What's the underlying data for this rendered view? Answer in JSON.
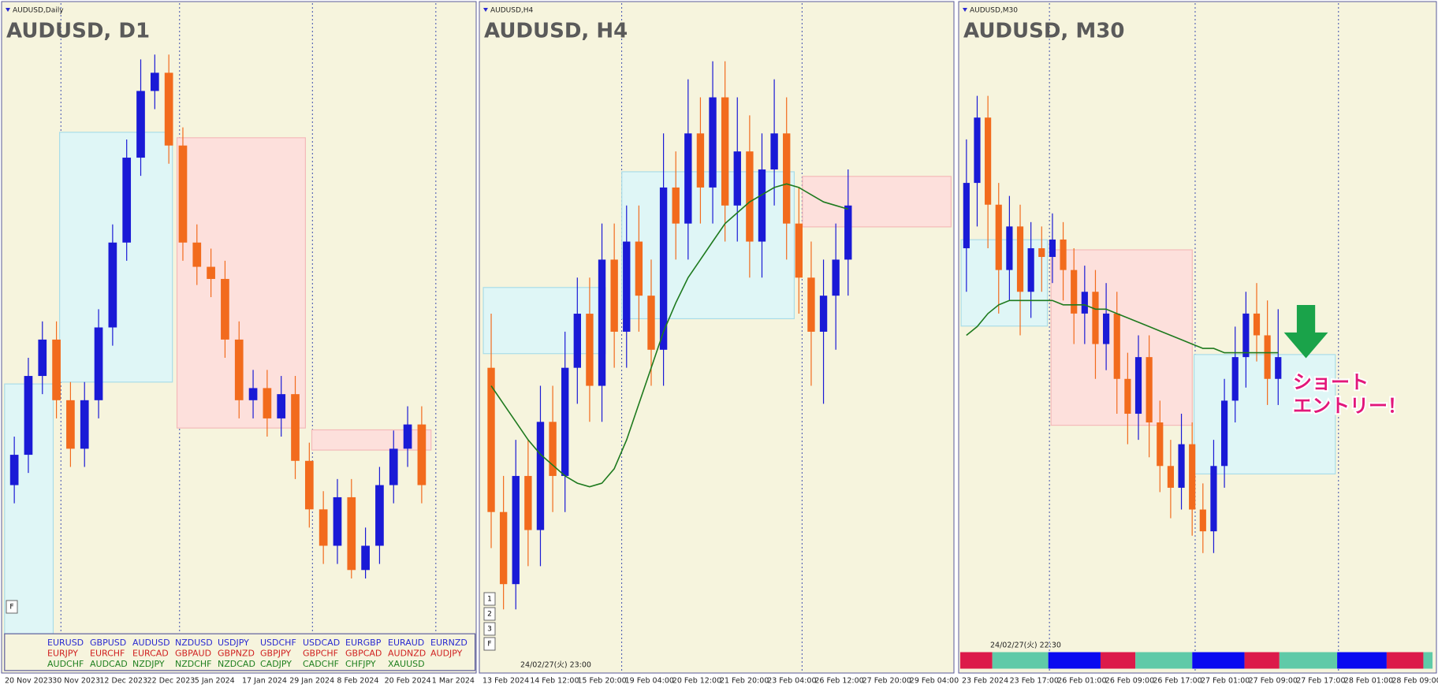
{
  "chart_data": [
    {
      "type": "candlestick",
      "symbol": "AUDUSD,Daily",
      "title": "AUDUSD, D1",
      "up_color": "#1a1ad6",
      "down_color": "#f26b1d",
      "ylim": [
        0.6367,
        0.692
      ],
      "open": [
        0.652,
        0.6545,
        0.661,
        0.664,
        0.659,
        0.655,
        0.659,
        0.665,
        0.672,
        0.679,
        0.6845,
        0.686,
        0.68,
        0.672,
        0.67,
        0.669,
        0.664,
        0.659,
        0.66,
        0.6575,
        0.6595,
        0.654,
        0.65,
        0.647,
        0.651,
        0.645,
        0.647,
        0.652,
        0.655,
        0.657
      ],
      "high": [
        0.656,
        0.6625,
        0.6655,
        0.6655,
        0.6605,
        0.6605,
        0.6665,
        0.6735,
        0.6805,
        0.6871,
        0.6875,
        0.6875,
        0.6815,
        0.6735,
        0.6715,
        0.6705,
        0.6655,
        0.6615,
        0.6615,
        0.661,
        0.661,
        0.6555,
        0.6515,
        0.6525,
        0.6525,
        0.6485,
        0.6535,
        0.6565,
        0.6585,
        0.6585
      ],
      "low": [
        0.6505,
        0.653,
        0.6595,
        0.6575,
        0.6535,
        0.6535,
        0.6575,
        0.6635,
        0.6705,
        0.6775,
        0.683,
        0.6785,
        0.6705,
        0.6685,
        0.6675,
        0.6625,
        0.6575,
        0.6575,
        0.656,
        0.656,
        0.6525,
        0.6485,
        0.6455,
        0.6455,
        0.6443,
        0.6443,
        0.6455,
        0.6505,
        0.6535,
        0.6505
      ],
      "close": [
        0.6545,
        0.661,
        0.664,
        0.659,
        0.655,
        0.659,
        0.665,
        0.672,
        0.679,
        0.6845,
        0.686,
        0.68,
        0.672,
        0.67,
        0.669,
        0.664,
        0.659,
        0.66,
        0.6575,
        0.6595,
        0.654,
        0.65,
        0.647,
        0.651,
        0.645,
        0.647,
        0.652,
        0.655,
        0.657,
        0.652
      ],
      "x_labels": [
        "20 Nov 2023",
        "30 Nov 2023",
        "12 Dec 2023",
        "22 Dec 2023",
        "5 Jan 2024",
        "17 Jan 2024",
        "29 Jan 2024",
        "8 Feb 2024",
        "20 Feb 2024",
        "1 Mar 2024"
      ],
      "pairs": [
        [
          "EURUSD",
          "GBPUSD",
          "AUDUSD",
          "NZDUSD",
          "USDJPY",
          "USDCHF",
          "USDCAD",
          "EURGBP",
          "EURAUD",
          "EURNZD"
        ],
        [
          "EURJPY",
          "EURCHF",
          "EURCAD",
          "GBPAUD",
          "GBPNZD",
          "GBPJPY",
          "GBPCHF",
          "GBPCAD",
          "AUDNZD",
          "AUDJPY"
        ],
        [
          "AUDCHF",
          "AUDCAD",
          "NZDJPY",
          "NZDCHF",
          "NZDCAD",
          "CADJPY",
          "CADCHF",
          "CHFJPY",
          "XAUUSD"
        ]
      ],
      "pair_colors": [
        "#2a2ad0",
        "#d02020",
        "#208020"
      ],
      "buttons": [
        "F"
      ]
    },
    {
      "type": "candlestick",
      "symbol": "AUDUSD,H4",
      "title": "AUDUSD, H4",
      "up_color": "#1a1ad6",
      "down_color": "#f26b1d",
      "ma_color": "#1e7a1e",
      "ylim": [
        0.6426,
        0.6612
      ],
      "open": [
        0.651,
        0.647,
        0.645,
        0.648,
        0.6465,
        0.6495,
        0.648,
        0.651,
        0.6525,
        0.6505,
        0.654,
        0.652,
        0.6545,
        0.653,
        0.6515,
        0.656,
        0.655,
        0.6575,
        0.656,
        0.6585,
        0.6555,
        0.657,
        0.6545,
        0.6565,
        0.6575,
        0.655,
        0.6535,
        0.652,
        0.653,
        0.654
      ],
      "high": [
        0.6525,
        0.648,
        0.649,
        0.649,
        0.6505,
        0.6505,
        0.652,
        0.6535,
        0.6535,
        0.655,
        0.655,
        0.6555,
        0.6555,
        0.654,
        0.6575,
        0.657,
        0.659,
        0.6585,
        0.6595,
        0.6595,
        0.6585,
        0.658,
        0.6575,
        0.659,
        0.6585,
        0.656,
        0.6545,
        0.654,
        0.655,
        0.6565
      ],
      "low": [
        0.646,
        0.6443,
        0.6443,
        0.6455,
        0.6455,
        0.647,
        0.647,
        0.65,
        0.6495,
        0.6495,
        0.651,
        0.651,
        0.652,
        0.6505,
        0.6505,
        0.654,
        0.654,
        0.655,
        0.655,
        0.6545,
        0.6545,
        0.6535,
        0.6535,
        0.6555,
        0.654,
        0.6525,
        0.6505,
        0.65,
        0.6515,
        0.653
      ],
      "close": [
        0.647,
        0.645,
        0.648,
        0.6465,
        0.6495,
        0.648,
        0.651,
        0.6525,
        0.6505,
        0.654,
        0.652,
        0.6545,
        0.653,
        0.6515,
        0.656,
        0.655,
        0.6575,
        0.656,
        0.6585,
        0.6555,
        0.657,
        0.6545,
        0.6565,
        0.6575,
        0.655,
        0.6535,
        0.652,
        0.653,
        0.654,
        0.6555
      ],
      "ma": [
        0.6505,
        0.65,
        0.6495,
        0.649,
        0.6486,
        0.6483,
        0.648,
        0.6478,
        0.6477,
        0.6478,
        0.6482,
        0.649,
        0.65,
        0.651,
        0.652,
        0.6528,
        0.6535,
        0.654,
        0.6545,
        0.655,
        0.6553,
        0.6556,
        0.6558,
        0.656,
        0.6561,
        0.656,
        0.6558,
        0.6556,
        0.6555,
        0.6554
      ],
      "x_labels": [
        "13 Feb 2024",
        "14 Feb 12:00",
        "15 Feb 20:00",
        "19 Feb 04:00",
        "20 Feb 12:00",
        "21 Feb 20:00",
        "23 Feb 04:00",
        "26 Feb 12:00",
        "27 Feb 20:00",
        "29 Feb 04:00"
      ],
      "timestamp": "24/02/27(火) 23:00",
      "buttons": [
        "1",
        "2",
        "3",
        "F"
      ]
    },
    {
      "type": "candlestick",
      "symbol": "AUDUSD,M30",
      "title": "AUDUSD, M30",
      "up_color": "#1a1ad6",
      "down_color": "#f26b1d",
      "ma_color": "#1e7a1e",
      "ylim": [
        0.6453,
        0.6607
      ],
      "open": [
        0.655,
        0.6565,
        0.658,
        0.656,
        0.6545,
        0.6555,
        0.654,
        0.655,
        0.6548,
        0.6552,
        0.6545,
        0.6535,
        0.654,
        0.6528,
        0.6535,
        0.652,
        0.6512,
        0.6525,
        0.651,
        0.65,
        0.6495,
        0.6505,
        0.649,
        0.6485,
        0.65,
        0.6515,
        0.6525,
        0.6535,
        0.653,
        0.652
      ],
      "high": [
        0.6575,
        0.6585,
        0.6585,
        0.6565,
        0.6562,
        0.656,
        0.6556,
        0.6555,
        0.6558,
        0.6556,
        0.655,
        0.6546,
        0.6545,
        0.6542,
        0.654,
        0.6526,
        0.653,
        0.653,
        0.6515,
        0.6506,
        0.6512,
        0.651,
        0.6496,
        0.6506,
        0.652,
        0.6532,
        0.654,
        0.6542,
        0.6538,
        0.6536
      ],
      "low": [
        0.654,
        0.6555,
        0.655,
        0.6535,
        0.6538,
        0.653,
        0.6534,
        0.654,
        0.6542,
        0.6538,
        0.6528,
        0.6528,
        0.652,
        0.6522,
        0.6512,
        0.6505,
        0.6506,
        0.6502,
        0.6494,
        0.6488,
        0.649,
        0.6484,
        0.648,
        0.648,
        0.6495,
        0.651,
        0.6518,
        0.6524,
        0.6514,
        0.6514
      ],
      "close": [
        0.6565,
        0.658,
        0.656,
        0.6545,
        0.6555,
        0.654,
        0.655,
        0.6548,
        0.6552,
        0.6545,
        0.6535,
        0.654,
        0.6528,
        0.6535,
        0.652,
        0.6512,
        0.6525,
        0.651,
        0.65,
        0.6495,
        0.6505,
        0.649,
        0.6485,
        0.65,
        0.6515,
        0.6525,
        0.6535,
        0.653,
        0.652,
        0.6525
      ],
      "ma": [
        0.653,
        0.6532,
        0.6535,
        0.6537,
        0.6538,
        0.6538,
        0.6538,
        0.6538,
        0.6538,
        0.6537,
        0.6537,
        0.6537,
        0.6536,
        0.6536,
        0.6535,
        0.6534,
        0.6533,
        0.6532,
        0.6531,
        0.653,
        0.6529,
        0.6528,
        0.6527,
        0.6527,
        0.6526,
        0.6526,
        0.6526,
        0.6526,
        0.6526,
        0.6526
      ],
      "x_labels": [
        "23 Feb 2024",
        "23 Feb 17:00",
        "26 Feb 01:00",
        "26 Feb 09:00",
        "26 Feb 17:00",
        "27 Feb 01:00",
        "27 Feb 09:00",
        "27 Feb 17:00",
        "28 Feb 01:00",
        "28 Feb 09:00"
      ],
      "timestamp": "24/02/27(火) 22:30",
      "annotation": [
        "ショート",
        "エントリー！"
      ]
    }
  ]
}
